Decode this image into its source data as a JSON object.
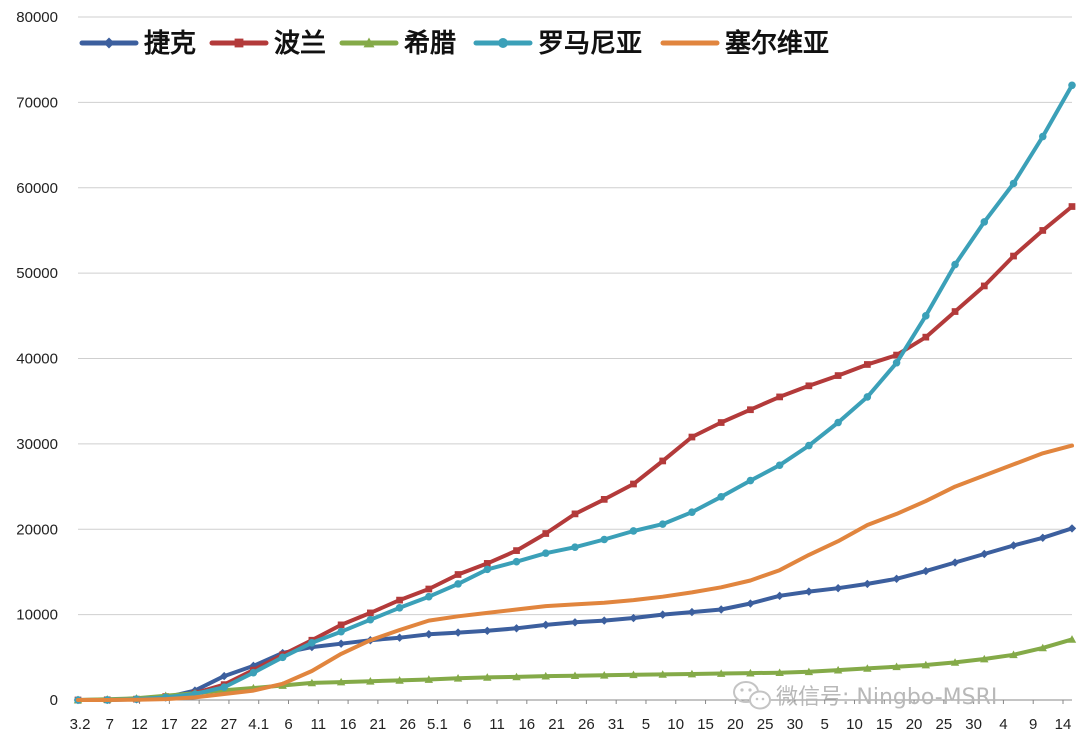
{
  "chart_data": {
    "type": "line",
    "title": "",
    "xlabel": "",
    "ylabel": "",
    "ylim": [
      0,
      80000
    ],
    "yticks": [
      0,
      10000,
      20000,
      30000,
      40000,
      50000,
      60000,
      70000,
      80000
    ],
    "ytick_labels": [
      "0",
      "10000",
      "20000",
      "30000",
      "40000",
      "50000",
      "60000",
      "70000",
      "80000"
    ],
    "grid": "horizontal",
    "legend_position": "top-left",
    "x_tick_labels": [
      "3.2",
      "7",
      "12",
      "17",
      "22",
      "27",
      "4.1",
      "6",
      "11",
      "16",
      "21",
      "26",
      "5.1",
      "6",
      "11",
      "16",
      "21",
      "26",
      "31",
      "5",
      "10",
      "15",
      "20",
      "25",
      "30",
      "5",
      "10",
      "15",
      "20",
      "25",
      "30",
      "4",
      "9",
      "14"
    ],
    "x": [
      0,
      5,
      10,
      15,
      20,
      25,
      30,
      35,
      40,
      45,
      50,
      55,
      60,
      65,
      70,
      75,
      80,
      85,
      90,
      95,
      100,
      105,
      110,
      115,
      120,
      125,
      130,
      135,
      140,
      145,
      150,
      155,
      160,
      165,
      170
    ],
    "series": [
      {
        "name": "捷克",
        "color": "#3c5f9e",
        "marker": "diamond",
        "values": [
          0,
          10,
          80,
          300,
          1100,
          2800,
          4000,
          5500,
          6200,
          6600,
          7000,
          7300,
          7700,
          7900,
          8100,
          8400,
          8800,
          9100,
          9300,
          9600,
          10000,
          10300,
          10600,
          11300,
          12200,
          12700,
          13100,
          13600,
          14200,
          15100,
          16100,
          17100,
          18100,
          19000,
          20100
        ]
      },
      {
        "name": "波兰",
        "color": "#b33a3a",
        "marker": "square",
        "values": [
          0,
          20,
          100,
          400,
          800,
          1800,
          3500,
          5300,
          7000,
          8800,
          10200,
          11700,
          13000,
          14700,
          16000,
          17500,
          19500,
          21800,
          23500,
          25300,
          28000,
          30800,
          32500,
          34000,
          35500,
          36800,
          38000,
          39300,
          40400,
          42500,
          45500,
          48500,
          52000,
          55000,
          57800
        ]
      },
      {
        "name": "希腊",
        "color": "#84aa48",
        "marker": "triangle",
        "values": [
          0,
          80,
          200,
          500,
          800,
          1150,
          1400,
          1700,
          2000,
          2100,
          2200,
          2300,
          2400,
          2550,
          2650,
          2700,
          2800,
          2850,
          2900,
          2950,
          3000,
          3050,
          3100,
          3150,
          3200,
          3300,
          3500,
          3700,
          3900,
          4100,
          4400,
          4800,
          5300,
          6100,
          7100
        ]
      },
      {
        "name": "罗马尼亚",
        "color": "#3ba0b8",
        "marker": "circle",
        "values": [
          0,
          10,
          100,
          300,
          700,
          1500,
          3200,
          5000,
          6700,
          8000,
          9400,
          10800,
          12100,
          13600,
          15300,
          16200,
          17200,
          17900,
          18800,
          19800,
          20600,
          22000,
          23800,
          25700,
          27500,
          29800,
          32500,
          35500,
          39500,
          45000,
          51000,
          56000,
          60500,
          66000,
          72000
        ]
      },
      {
        "name": "塞尔维亚",
        "color": "#e1853e",
        "marker": "none",
        "values": [
          0,
          0,
          30,
          100,
          300,
          700,
          1100,
          1900,
          3400,
          5400,
          7000,
          8200,
          9300,
          9800,
          10200,
          10600,
          11000,
          11200,
          11400,
          11700,
          12100,
          12600,
          13200,
          14000,
          15200,
          17000,
          18600,
          20500,
          21800,
          23300,
          25000,
          26300,
          27600,
          28900,
          29800
        ]
      }
    ]
  },
  "watermark": {
    "icon": "wechat-icon",
    "text": "微信号: Ningbo-MSRI"
  }
}
